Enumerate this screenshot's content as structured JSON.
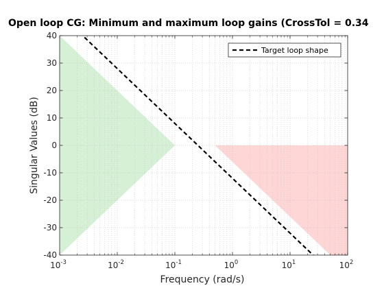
{
  "chart_data": {
    "type": "line",
    "title": "Open loop CG: Minimum and maximum loop gains (CrossTol = 0.34",
    "xlabel": "Frequency (rad/s)",
    "ylabel": "Singular Values (dB)",
    "xscale": "log",
    "xlim": [
      0.001,
      100
    ],
    "ylim": [
      -40,
      40
    ],
    "x_ticks": [
      {
        "base": "10",
        "exp": "-3",
        "value": 0.001
      },
      {
        "base": "10",
        "exp": "-2",
        "value": 0.01
      },
      {
        "base": "10",
        "exp": "-1",
        "value": 0.1
      },
      {
        "base": "10",
        "exp": "0",
        "value": 1
      },
      {
        "base": "10",
        "exp": "1",
        "value": 10
      },
      {
        "base": "10",
        "exp": "2",
        "value": 100
      }
    ],
    "y_ticks": [
      "-40",
      "-30",
      "-20",
      "-10",
      "0",
      "10",
      "20",
      "30",
      "40"
    ],
    "grid": true,
    "legend_position": "top-right",
    "series": [
      {
        "name": "Target loop shape",
        "style": "dashed",
        "color": "#000000",
        "x": [
          0.001,
          100
        ],
        "y": [
          48,
          -52
        ]
      }
    ],
    "regions": [
      {
        "kind": "min-gain",
        "color": "#d6f0d6",
        "x": [
          0.001,
          0.1,
          0.001
        ],
        "y": [
          40,
          0,
          -40
        ]
      },
      {
        "kind": "max-gain",
        "color": "#ffd6d6",
        "x": [
          0.5,
          100,
          100,
          50
        ],
        "y": [
          0,
          0,
          -40,
          -40
        ]
      }
    ]
  }
}
